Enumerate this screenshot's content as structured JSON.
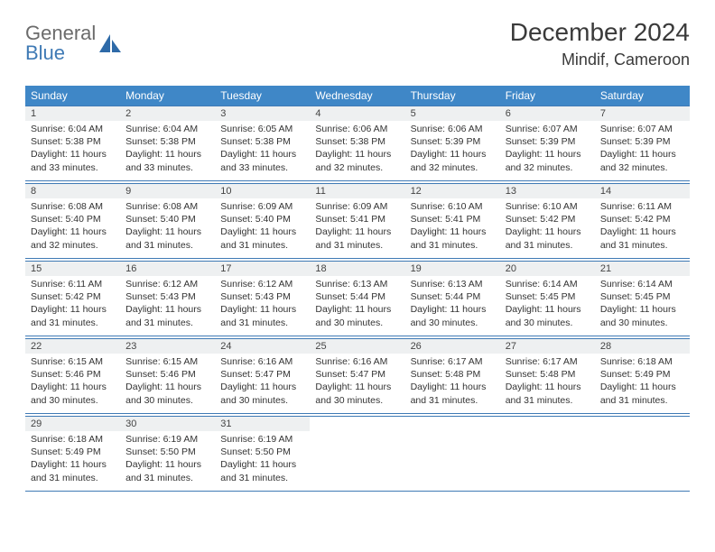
{
  "brand": {
    "line1": "General",
    "line2": "Blue"
  },
  "title": "December 2024",
  "location": "Mindif, Cameroon",
  "colors": {
    "header_bg": "#3f87c7",
    "border": "#3f7ab5",
    "daynum_bg": "#eef0f1",
    "text": "#333333",
    "brand_gray": "#6b6b6b",
    "brand_blue": "#3f7ab5"
  },
  "dow": [
    "Sunday",
    "Monday",
    "Tuesday",
    "Wednesday",
    "Thursday",
    "Friday",
    "Saturday"
  ],
  "weeks": [
    [
      {
        "n": "1",
        "sr": "Sunrise: 6:04 AM",
        "ss": "Sunset: 5:38 PM",
        "dl": "Daylight: 11 hours and 33 minutes."
      },
      {
        "n": "2",
        "sr": "Sunrise: 6:04 AM",
        "ss": "Sunset: 5:38 PM",
        "dl": "Daylight: 11 hours and 33 minutes."
      },
      {
        "n": "3",
        "sr": "Sunrise: 6:05 AM",
        "ss": "Sunset: 5:38 PM",
        "dl": "Daylight: 11 hours and 33 minutes."
      },
      {
        "n": "4",
        "sr": "Sunrise: 6:06 AM",
        "ss": "Sunset: 5:38 PM",
        "dl": "Daylight: 11 hours and 32 minutes."
      },
      {
        "n": "5",
        "sr": "Sunrise: 6:06 AM",
        "ss": "Sunset: 5:39 PM",
        "dl": "Daylight: 11 hours and 32 minutes."
      },
      {
        "n": "6",
        "sr": "Sunrise: 6:07 AM",
        "ss": "Sunset: 5:39 PM",
        "dl": "Daylight: 11 hours and 32 minutes."
      },
      {
        "n": "7",
        "sr": "Sunrise: 6:07 AM",
        "ss": "Sunset: 5:39 PM",
        "dl": "Daylight: 11 hours and 32 minutes."
      }
    ],
    [
      {
        "n": "8",
        "sr": "Sunrise: 6:08 AM",
        "ss": "Sunset: 5:40 PM",
        "dl": "Daylight: 11 hours and 32 minutes."
      },
      {
        "n": "9",
        "sr": "Sunrise: 6:08 AM",
        "ss": "Sunset: 5:40 PM",
        "dl": "Daylight: 11 hours and 31 minutes."
      },
      {
        "n": "10",
        "sr": "Sunrise: 6:09 AM",
        "ss": "Sunset: 5:40 PM",
        "dl": "Daylight: 11 hours and 31 minutes."
      },
      {
        "n": "11",
        "sr": "Sunrise: 6:09 AM",
        "ss": "Sunset: 5:41 PM",
        "dl": "Daylight: 11 hours and 31 minutes."
      },
      {
        "n": "12",
        "sr": "Sunrise: 6:10 AM",
        "ss": "Sunset: 5:41 PM",
        "dl": "Daylight: 11 hours and 31 minutes."
      },
      {
        "n": "13",
        "sr": "Sunrise: 6:10 AM",
        "ss": "Sunset: 5:42 PM",
        "dl": "Daylight: 11 hours and 31 minutes."
      },
      {
        "n": "14",
        "sr": "Sunrise: 6:11 AM",
        "ss": "Sunset: 5:42 PM",
        "dl": "Daylight: 11 hours and 31 minutes."
      }
    ],
    [
      {
        "n": "15",
        "sr": "Sunrise: 6:11 AM",
        "ss": "Sunset: 5:42 PM",
        "dl": "Daylight: 11 hours and 31 minutes."
      },
      {
        "n": "16",
        "sr": "Sunrise: 6:12 AM",
        "ss": "Sunset: 5:43 PM",
        "dl": "Daylight: 11 hours and 31 minutes."
      },
      {
        "n": "17",
        "sr": "Sunrise: 6:12 AM",
        "ss": "Sunset: 5:43 PM",
        "dl": "Daylight: 11 hours and 31 minutes."
      },
      {
        "n": "18",
        "sr": "Sunrise: 6:13 AM",
        "ss": "Sunset: 5:44 PM",
        "dl": "Daylight: 11 hours and 30 minutes."
      },
      {
        "n": "19",
        "sr": "Sunrise: 6:13 AM",
        "ss": "Sunset: 5:44 PM",
        "dl": "Daylight: 11 hours and 30 minutes."
      },
      {
        "n": "20",
        "sr": "Sunrise: 6:14 AM",
        "ss": "Sunset: 5:45 PM",
        "dl": "Daylight: 11 hours and 30 minutes."
      },
      {
        "n": "21",
        "sr": "Sunrise: 6:14 AM",
        "ss": "Sunset: 5:45 PM",
        "dl": "Daylight: 11 hours and 30 minutes."
      }
    ],
    [
      {
        "n": "22",
        "sr": "Sunrise: 6:15 AM",
        "ss": "Sunset: 5:46 PM",
        "dl": "Daylight: 11 hours and 30 minutes."
      },
      {
        "n": "23",
        "sr": "Sunrise: 6:15 AM",
        "ss": "Sunset: 5:46 PM",
        "dl": "Daylight: 11 hours and 30 minutes."
      },
      {
        "n": "24",
        "sr": "Sunrise: 6:16 AM",
        "ss": "Sunset: 5:47 PM",
        "dl": "Daylight: 11 hours and 30 minutes."
      },
      {
        "n": "25",
        "sr": "Sunrise: 6:16 AM",
        "ss": "Sunset: 5:47 PM",
        "dl": "Daylight: 11 hours and 30 minutes."
      },
      {
        "n": "26",
        "sr": "Sunrise: 6:17 AM",
        "ss": "Sunset: 5:48 PM",
        "dl": "Daylight: 11 hours and 31 minutes."
      },
      {
        "n": "27",
        "sr": "Sunrise: 6:17 AM",
        "ss": "Sunset: 5:48 PM",
        "dl": "Daylight: 11 hours and 31 minutes."
      },
      {
        "n": "28",
        "sr": "Sunrise: 6:18 AM",
        "ss": "Sunset: 5:49 PM",
        "dl": "Daylight: 11 hours and 31 minutes."
      }
    ],
    [
      {
        "n": "29",
        "sr": "Sunrise: 6:18 AM",
        "ss": "Sunset: 5:49 PM",
        "dl": "Daylight: 11 hours and 31 minutes."
      },
      {
        "n": "30",
        "sr": "Sunrise: 6:19 AM",
        "ss": "Sunset: 5:50 PM",
        "dl": "Daylight: 11 hours and 31 minutes."
      },
      {
        "n": "31",
        "sr": "Sunrise: 6:19 AM",
        "ss": "Sunset: 5:50 PM",
        "dl": "Daylight: 11 hours and 31 minutes."
      },
      null,
      null,
      null,
      null
    ]
  ]
}
